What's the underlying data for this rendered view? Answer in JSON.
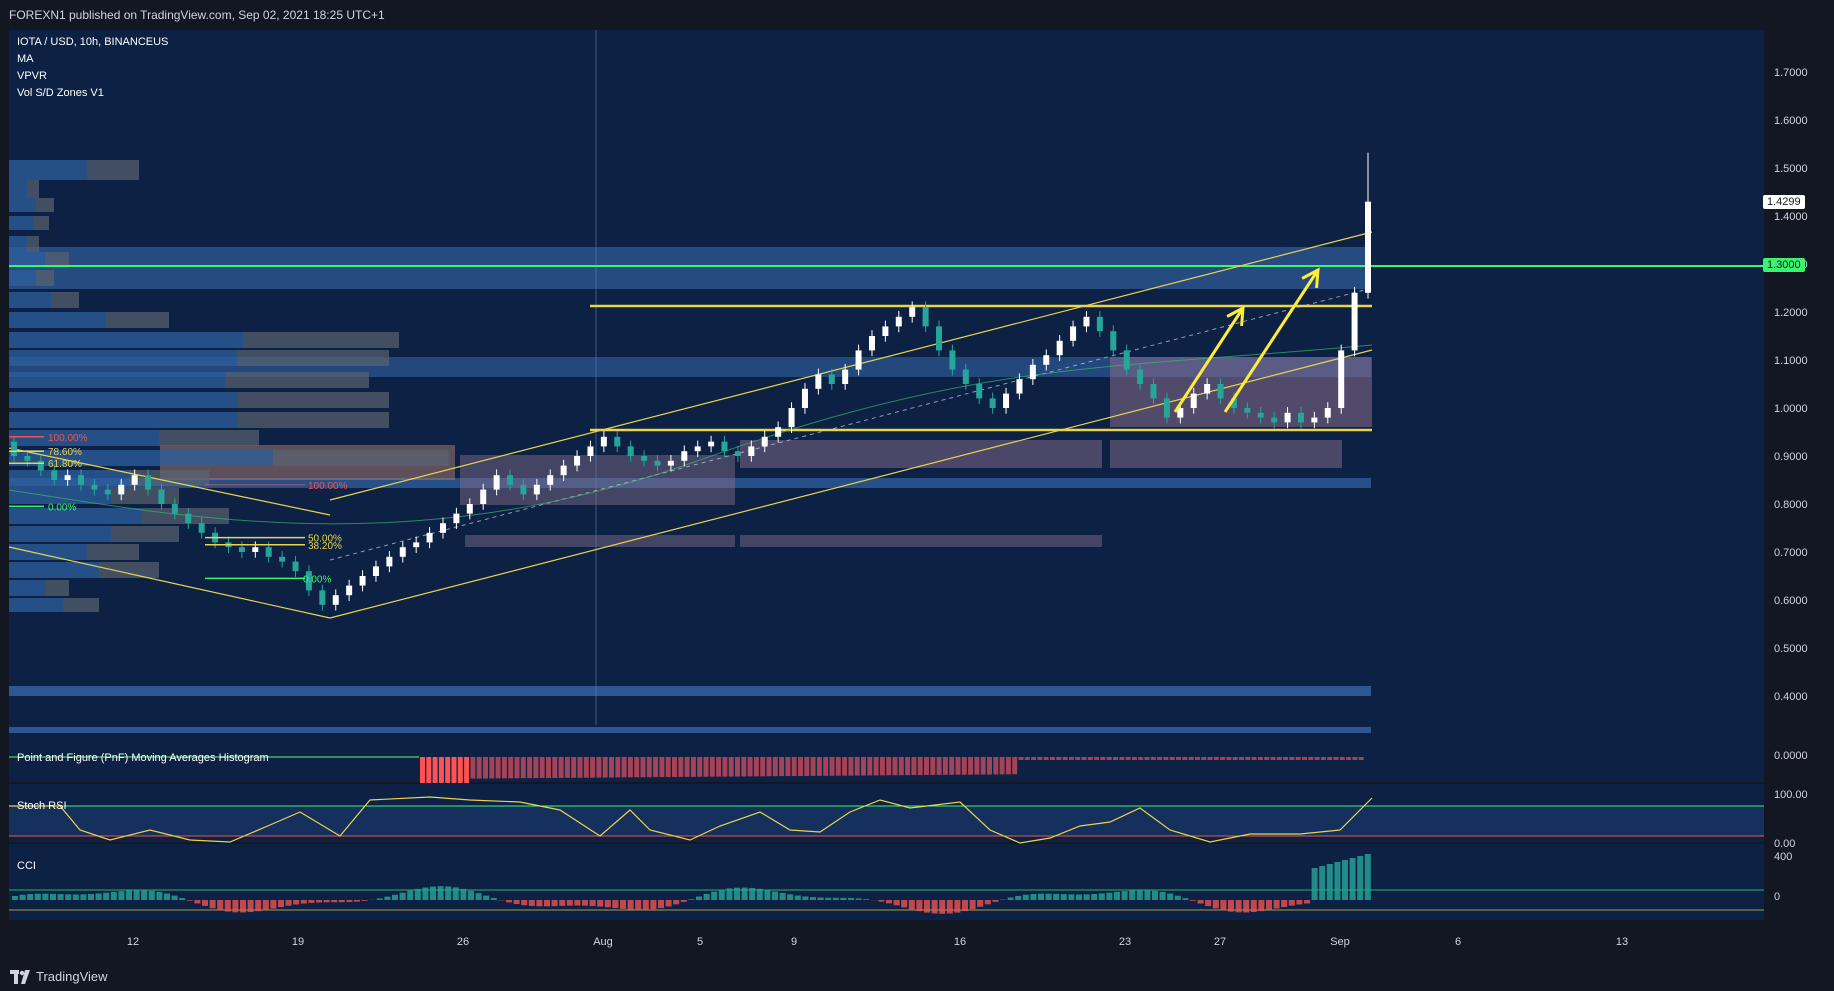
{
  "header": {
    "published": "FOREXN1 published on TradingView.com, Sep 02, 2021 18:25 UTC+1"
  },
  "legend": {
    "symbol": "IOTA / USD, 10h, BINANCEUS",
    "indicators": [
      "MA",
      "VPVR",
      "Vol S/D Zones V1"
    ]
  },
  "panes": {
    "pnf": "Point and Figure (PnF) Moving Averages Histogram",
    "stoch": "Stoch RSI",
    "cci": "CCI"
  },
  "footer": {
    "brand": "TradingView"
  },
  "colors": {
    "background": "#0c2144",
    "up_candle": "#ffffff",
    "down_candle": "#26a69a",
    "resistance_line": "#3cf36f",
    "channel": "#e8d44d",
    "arrows": "#ffeb3b",
    "fib_top": "#ef5350",
    "fib_mid": "#e8d44d",
    "fib_zero": "#3cf36f"
  },
  "chart_data": {
    "type": "candlestick",
    "title": "IOTA / USD, 10h, BINANCEUS",
    "ylim": [
      0.4,
      1.75
    ],
    "y_ticks": [
      "1.7000",
      "1.6000",
      "1.5000",
      "1.4000",
      "1.3000",
      "1.2000",
      "1.1000",
      "1.0000",
      "0.9000",
      "0.8000",
      "0.7000",
      "0.6000",
      "0.5000",
      "0.4000"
    ],
    "x_ticks": [
      "12",
      "19",
      "26",
      "Aug",
      "5",
      "9",
      "16",
      "23",
      "27",
      "Sep",
      "6",
      "13"
    ],
    "last_price": "1.4299",
    "key_level": "1.3000",
    "horizontal_levels": [
      1.215,
      0.955
    ],
    "fib_levels_left": [
      {
        "label": "100.00%",
        "value": 0.94
      },
      {
        "label": "78.60%",
        "value": 0.91
      },
      {
        "label": "61.80%",
        "value": 0.885
      },
      {
        "label": "0.00%",
        "value": 0.795
      }
    ],
    "fib_levels_mid": [
      {
        "label": "100.00%",
        "value": 0.84
      },
      {
        "label": "50.00%",
        "value": 0.73
      },
      {
        "label": "38.20%",
        "value": 0.715
      },
      {
        "label": "0.00%",
        "value": 0.645
      }
    ],
    "candles_summary": {
      "start_close": 0.93,
      "low": 0.57,
      "channel_high": 1.21,
      "range_low": 0.95,
      "final_high": 1.52,
      "final_close": 1.4299
    },
    "stoch_ticks": [
      "100.00",
      "0.00"
    ],
    "cci_ticks": [
      "400",
      "0"
    ],
    "pnf_tick": "0.0000"
  }
}
